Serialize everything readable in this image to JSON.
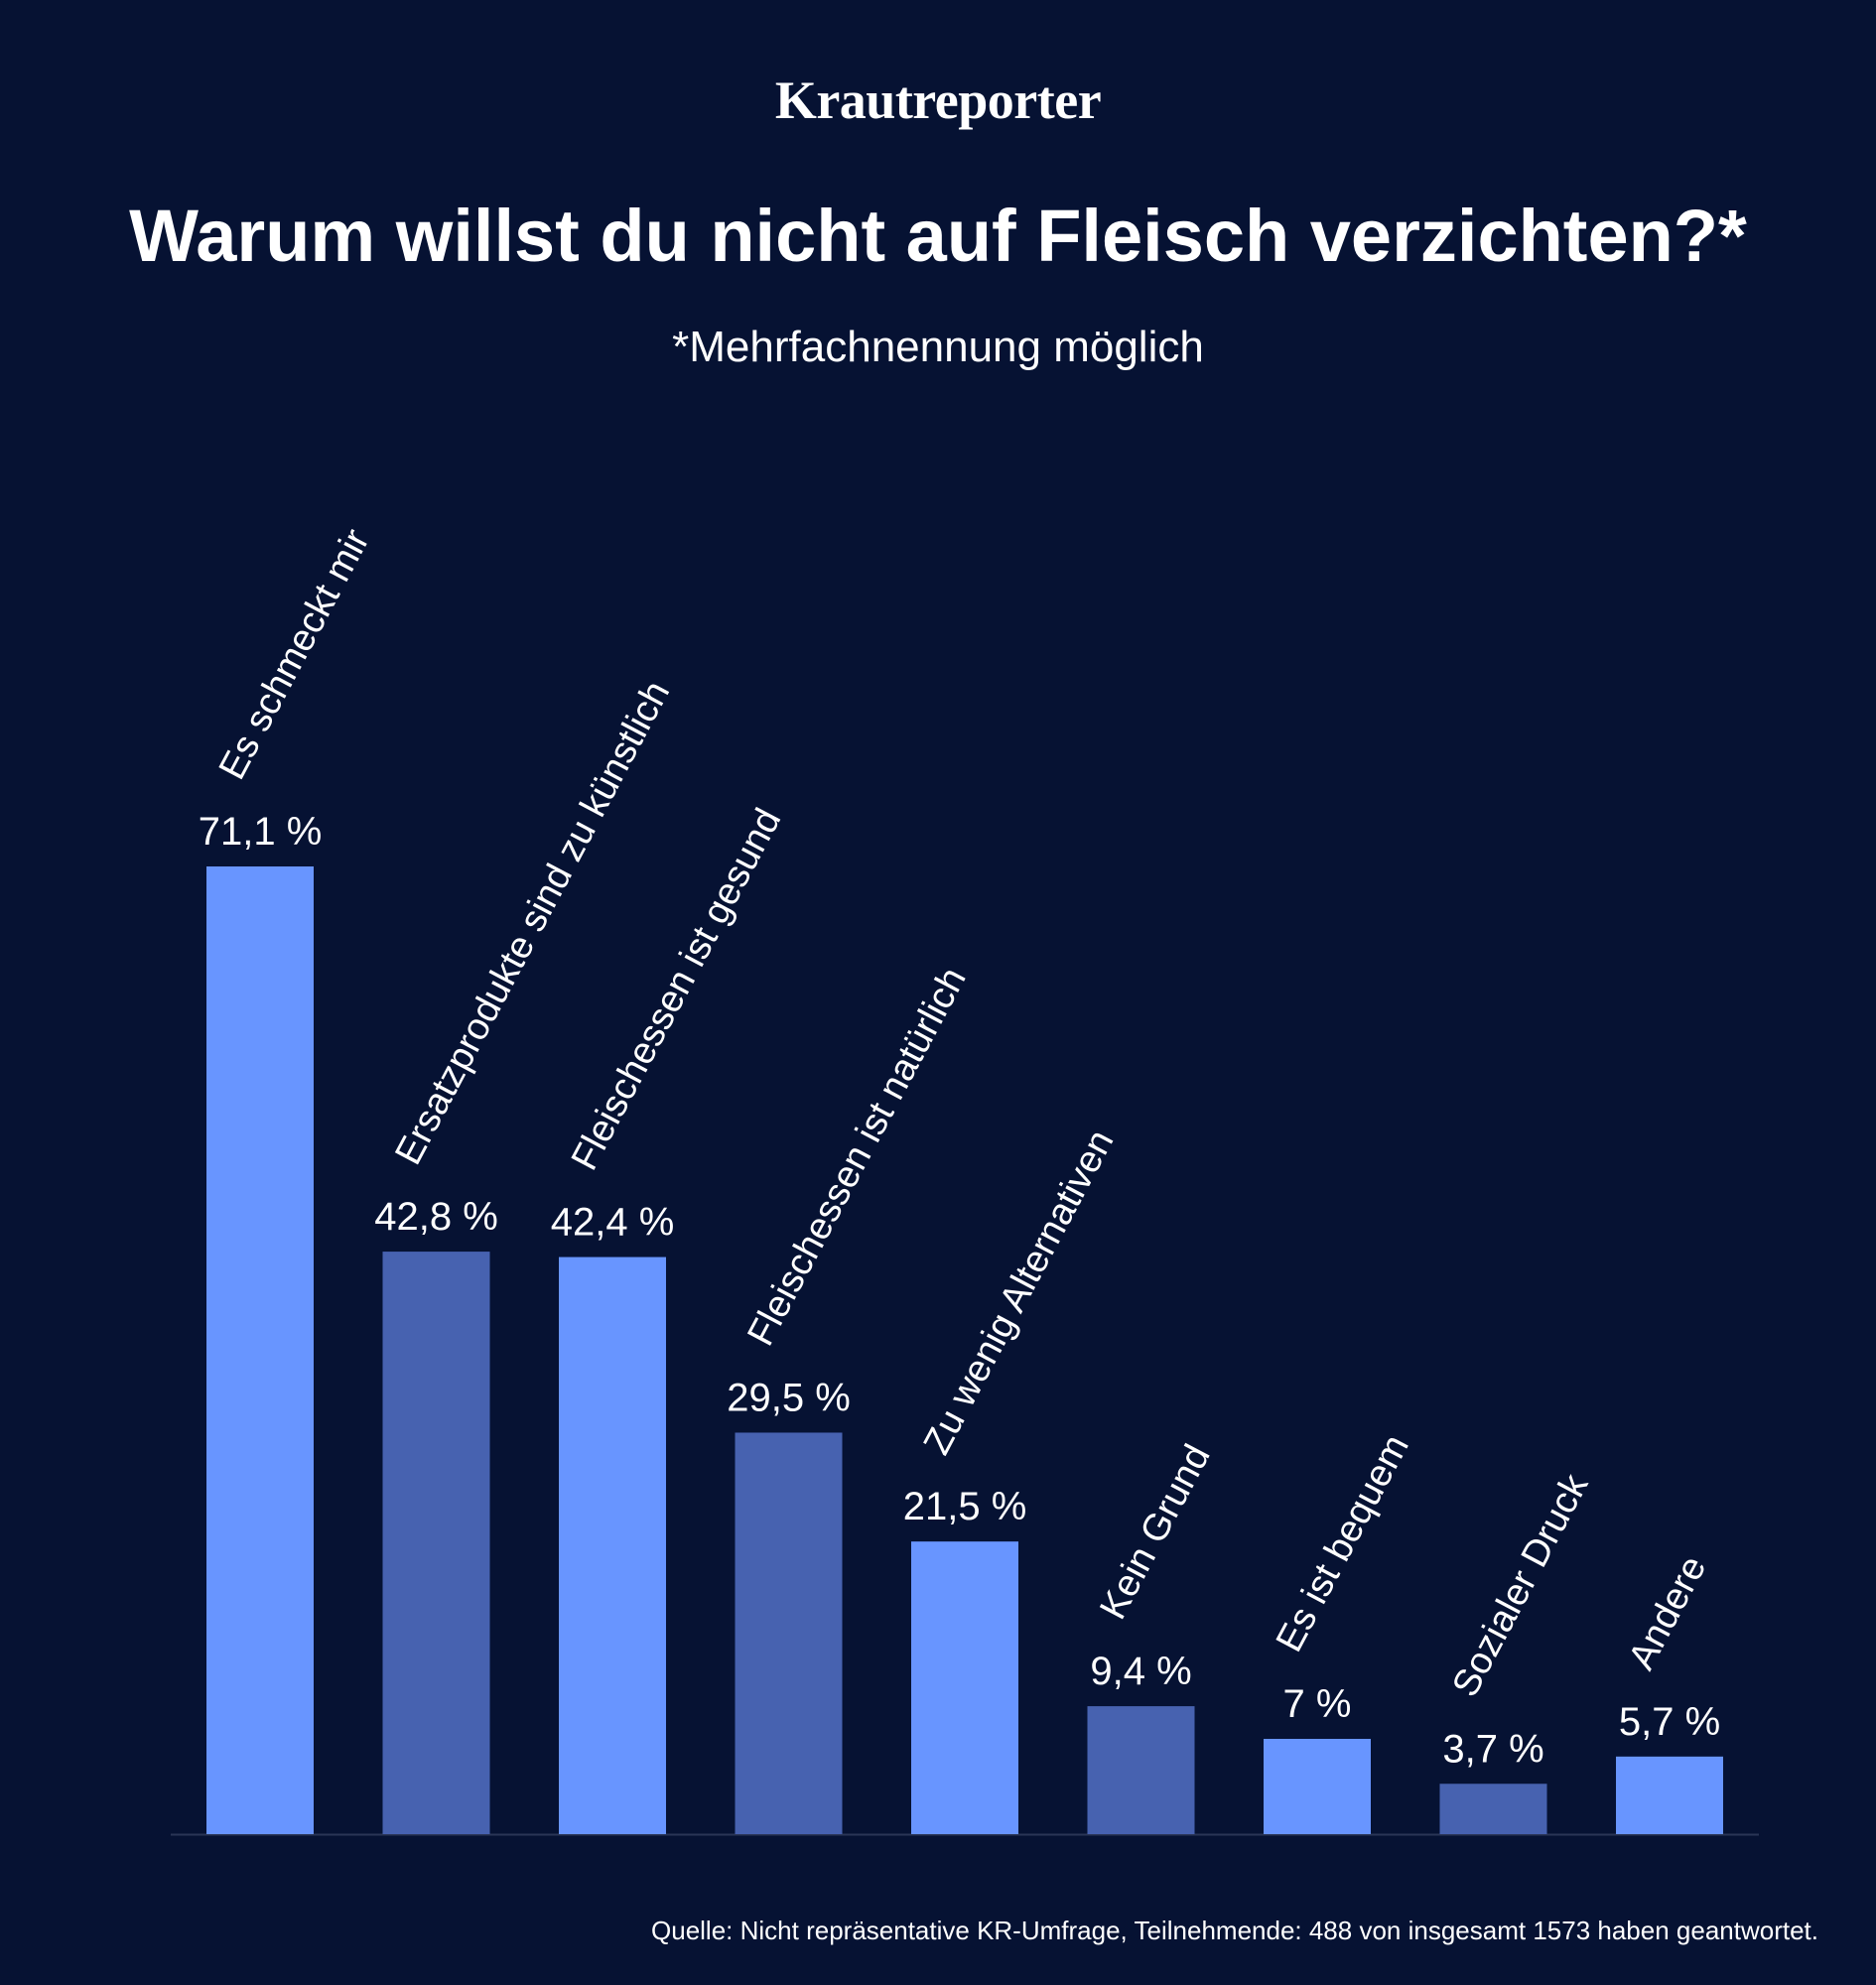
{
  "header": {
    "brand": "Krautreporter",
    "title": "Warum willst du nicht auf Fleisch verzichten?*",
    "subtitle": "*Mehrfachnennung möglich"
  },
  "footer": {
    "source": "Quelle: Nicht repräsentative KR-Umfrage, Teilnehmende: 488 von insgesamt 1573 haben geantwortet."
  },
  "colors": {
    "background": "#061233",
    "bar_light": "#6895FF",
    "bar_dark": "#4762B0",
    "text": "#FFFFFF"
  },
  "chart_data": {
    "type": "bar",
    "categories": [
      "Es schmeckt mir",
      "Ersatzprodukte sind zu künstlich",
      "Fleischessen ist gesund",
      "Fleischessen ist natürlich",
      "Zu wenig Alternativen",
      "Kein Grund",
      "Es ist bequem",
      "Sozialer Druck",
      "Andere"
    ],
    "values": [
      71.1,
      42.8,
      42.4,
      29.5,
      21.5,
      9.4,
      7,
      3.7,
      5.7
    ],
    "value_labels": [
      "71,1 %",
      "42,8 %",
      "42,4 %",
      "29,5 %",
      "21,5 %",
      "9,4 %",
      "7 %",
      "3,7 %",
      "5,7 %"
    ],
    "unit": "%",
    "ylim": [
      0,
      71.1
    ],
    "grid": false,
    "legend": "none",
    "title": "Warum willst du nicht auf Fleisch verzichten?*",
    "subtitle": "*Mehrfachnennung möglich"
  }
}
